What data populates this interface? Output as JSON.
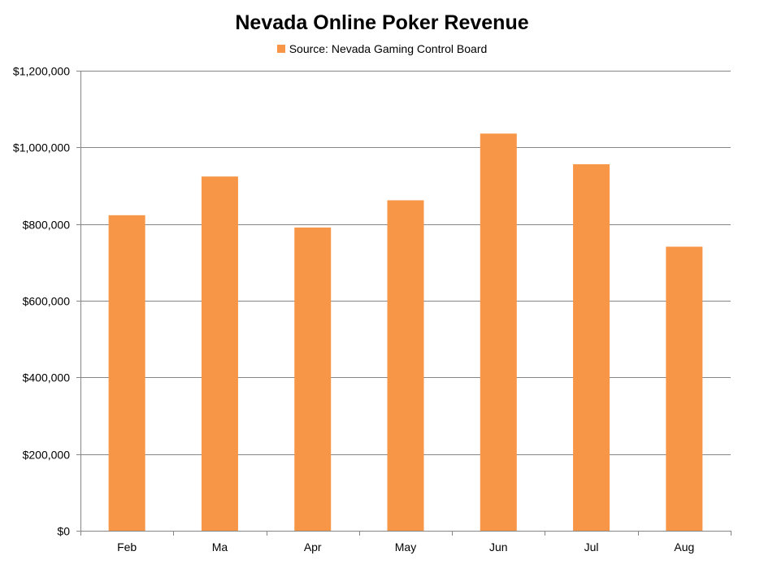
{
  "chart_data": {
    "type": "bar",
    "title": "Nevada Online Poker Revenue",
    "categories": [
      "Feb",
      "Ma",
      "Apr",
      "May",
      "Jun",
      "Jul",
      "Aug"
    ],
    "series": [
      {
        "name": "Source: Nevada Gaming Control Board",
        "values": [
          823000,
          924000,
          791000,
          862000,
          1036000,
          956000,
          741000
        ]
      }
    ],
    "xlabel": "",
    "ylabel": "",
    "ylim": [
      0,
      1200000
    ],
    "yticks": [
      0,
      200000,
      400000,
      600000,
      800000,
      1000000,
      1200000
    ],
    "ytick_labels": [
      "$0",
      "$200,000",
      "$400,000",
      "$600,000",
      "$800,000",
      "$1,000,000",
      "$1,200,000"
    ],
    "grid": true,
    "legend_position": "top-center",
    "bar_color": "#f79646",
    "grid_color": "#868686"
  }
}
